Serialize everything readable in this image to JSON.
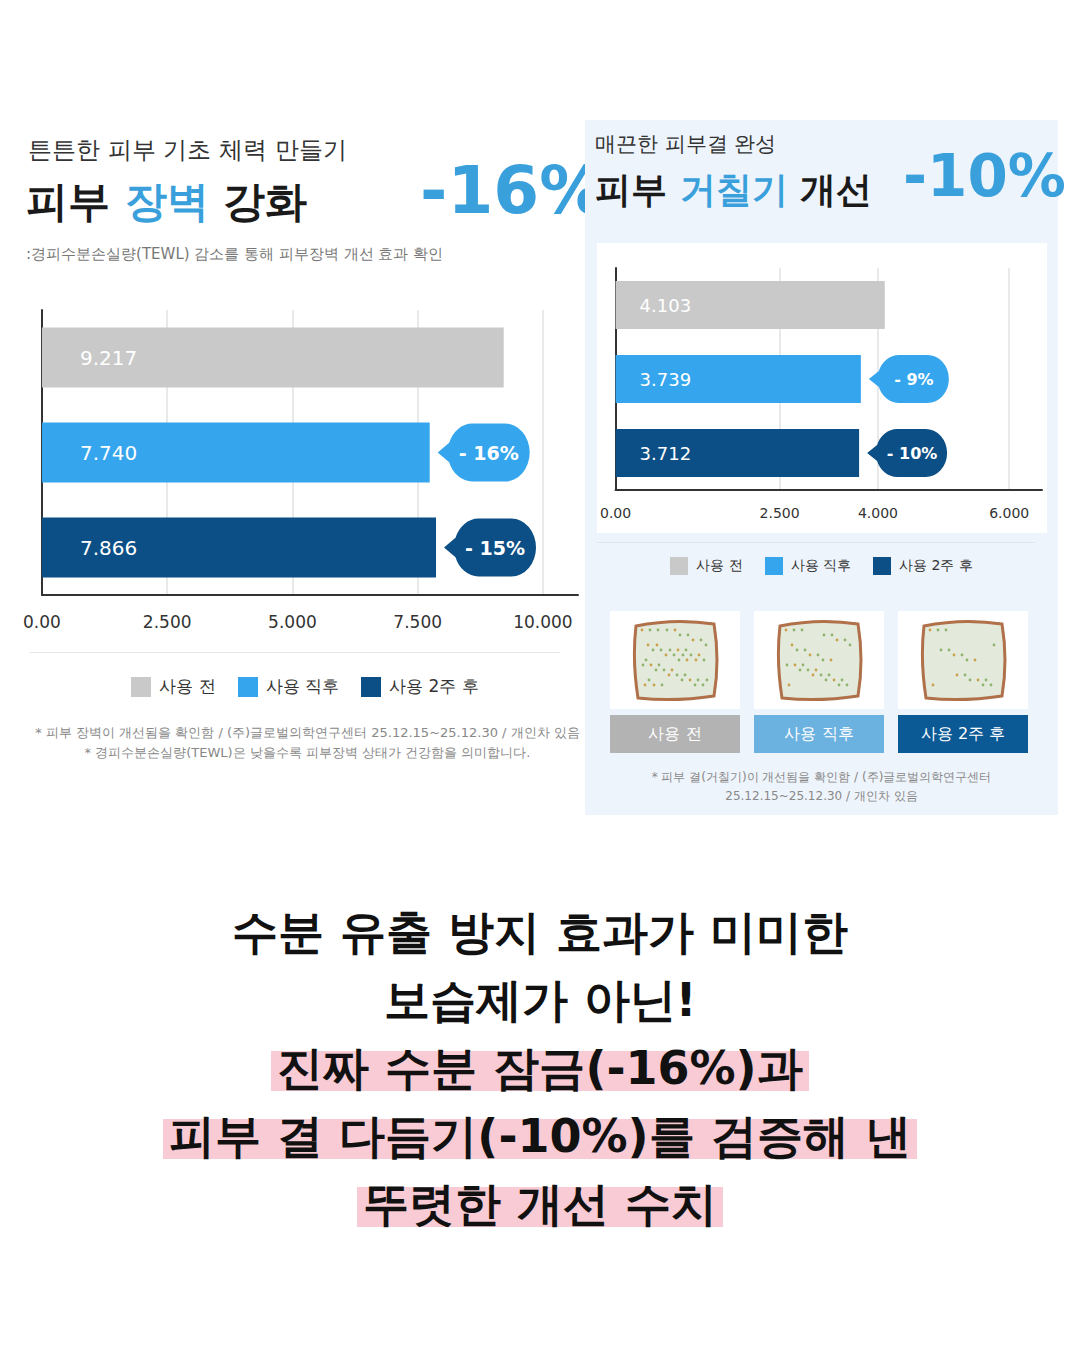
{
  "chart_data": [
    {
      "type": "bar",
      "orientation": "horizontal",
      "kicker": "튼튼한 피부 기초 체력 만들기",
      "title": "피부 장벽 강화",
      "title_highlight": "장벽",
      "highlight_value": "-16%",
      "subtitle": ":경피수분손실량(TEWL) 감소를 통해 피부장벽 개선 효과 확인",
      "categories": [
        "사용 전",
        "사용 직후",
        "사용 2주 후"
      ],
      "values": [
        9.217,
        7.74,
        7.866
      ],
      "value_labels": [
        "9.217",
        "7.740",
        "7.866"
      ],
      "colors": [
        "#c9c9c9",
        "#35a6ee",
        "#0c4f86"
      ],
      "annotations": [
        null,
        "- 16%",
        "- 15%"
      ],
      "xlim": [
        0,
        10.7
      ],
      "xticks": [
        {
          "value": 0,
          "label": "0.00"
        },
        {
          "value": 2.5,
          "label": "2.500"
        },
        {
          "value": 5,
          "label": "5.000"
        },
        {
          "value": 7.5,
          "label": "7.500"
        },
        {
          "value": 10,
          "label": "10.000"
        }
      ],
      "grid": true,
      "data_labels": true,
      "tick_labels": "x",
      "legend": "bottom",
      "footnotes": [
        "* 피부 장벽이 개선됨을 확인함 / (주)글로벌의학연구센터 25.12.15~25.12.30 / 개인차 있음",
        "* 경피수분손실량(TEWL)은 낮을수록 피부장벽 상태가 건강함을 의미합니다."
      ]
    },
    {
      "type": "bar",
      "orientation": "horizontal",
      "kicker": "매끈한 피부결 완성",
      "title": "피부 거칠기 개선",
      "title_highlight": "거칠기",
      "highlight_value": "-10%",
      "categories": [
        "사용 전",
        "사용 직후",
        "사용 2주 후"
      ],
      "values": [
        4.103,
        3.739,
        3.712
      ],
      "value_labels": [
        "4.103",
        "3.739",
        "3.712"
      ],
      "colors": [
        "#c9c9c9",
        "#35a6ee",
        "#0c4f86"
      ],
      "annotations": [
        null,
        "- 9%",
        "- 10%"
      ],
      "xlim": [
        0,
        6.5
      ],
      "xticks": [
        {
          "value": 0,
          "label": "0.00"
        },
        {
          "value": 2.5,
          "label": "2.500"
        },
        {
          "value": 4,
          "label": "4.000"
        },
        {
          "value": 6,
          "label": "6.000"
        }
      ],
      "grid": true,
      "data_labels": true,
      "tick_labels": "x",
      "legend": "bottom",
      "image_labels": [
        "사용 전",
        "사용 직후",
        "사용 2주 후"
      ],
      "image_colors": [
        "#b3b3b3",
        "#6cb2e0",
        "#0b5a96"
      ],
      "footnotes": [
        "* 피부 결(거칠기)이 개선됨을 확인함 / (주)글로벌의학연구센터",
        "25.12.15~25.12.30 / 개인차 있음"
      ]
    }
  ],
  "headline": [
    {
      "text": "수분 유출 방지 효과가 미미한",
      "highlight": false
    },
    {
      "text": "보습제가 아닌!",
      "highlight": false
    },
    {
      "text": "진짜 수분 잠금(-16%)과",
      "highlight": true
    },
    {
      "text": "피부 결 다듬기(-10%)를 검증해 낸",
      "highlight": true
    },
    {
      "text": "뚜렷한 개선 수치",
      "highlight": true
    }
  ]
}
